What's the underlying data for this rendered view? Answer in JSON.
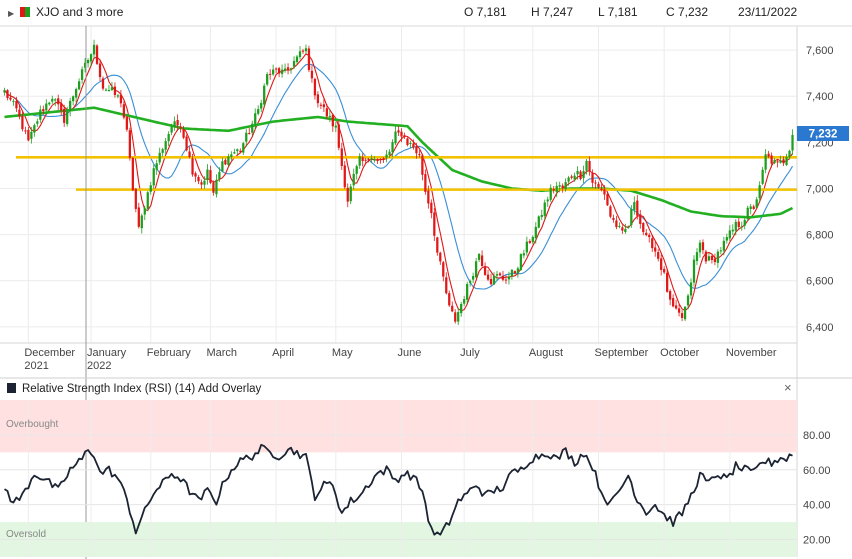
{
  "header": {
    "symbol_label": "XJO and 3 more",
    "open": "O 7,181",
    "high": "H 7,247",
    "low": "L 7,181",
    "close": "C 7,232",
    "date": "23/11/2022"
  },
  "price_panel": {
    "last_price_label": "7,232",
    "y_ticks": [
      "7,600",
      "7,400",
      "7,200",
      "7,000",
      "6,800",
      "6,600",
      "6,400"
    ],
    "x_ticks": [
      {
        "label": "December",
        "sub": "2021"
      },
      {
        "label": "January",
        "sub": "2022"
      },
      {
        "label": "February",
        "sub": ""
      },
      {
        "label": "March",
        "sub": ""
      },
      {
        "label": "April",
        "sub": ""
      },
      {
        "label": "May",
        "sub": ""
      },
      {
        "label": "June",
        "sub": ""
      },
      {
        "label": "July",
        "sub": ""
      },
      {
        "label": "August",
        "sub": ""
      },
      {
        "label": "September",
        "sub": ""
      },
      {
        "label": "October",
        "sub": ""
      },
      {
        "label": "November",
        "sub": ""
      }
    ]
  },
  "rsi_panel": {
    "title": "Relative Strength Index (RSI) (14)",
    "add_overlay": "Add Overlay",
    "close_symbol": "×",
    "overbought_label": "Overbought",
    "oversold_label": "Oversold",
    "y_ticks": [
      "80.00",
      "60.00",
      "40.00",
      "20.00"
    ]
  },
  "colors": {
    "up": "#1e9e1e",
    "down": "#e01818",
    "ma_fast": "#e01818",
    "ma_mid": "#3a8fd6",
    "ma_slow": "#22b022",
    "support_resistance": "#f2c200",
    "rsi_line": "#1c2433",
    "overbought_band": "#ffe1e1",
    "oversold_band": "#e2f6e2",
    "price_label_bg": "#2b78d0"
  },
  "chart_data": {
    "type": "candlestick",
    "y_range_price": [
      6330,
      7700
    ],
    "y_range_rsi": [
      10,
      100
    ],
    "horizontal_levels": [
      7135,
      6995
    ],
    "overbought_level": 70,
    "oversold_level": 30,
    "grid": true,
    "price_anchors": [
      [
        0,
        7420
      ],
      [
        4,
        7340
      ],
      [
        8,
        7200
      ],
      [
        12,
        7330
      ],
      [
        16,
        7400
      ],
      [
        20,
        7300
      ],
      [
        24,
        7440
      ],
      [
        28,
        7560
      ],
      [
        30,
        7610
      ],
      [
        33,
        7440
      ],
      [
        36,
        7420
      ],
      [
        39,
        7380
      ],
      [
        41,
        7240
      ],
      [
        43,
        7000
      ],
      [
        45,
        6820
      ],
      [
        47,
        6930
      ],
      [
        50,
        7080
      ],
      [
        53,
        7180
      ],
      [
        56,
        7270
      ],
      [
        59,
        7280
      ],
      [
        61,
        7180
      ],
      [
        63,
        7080
      ],
      [
        66,
        7020
      ],
      [
        68,
        7070
      ],
      [
        70,
        6980
      ],
      [
        73,
        7110
      ],
      [
        76,
        7150
      ],
      [
        79,
        7170
      ],
      [
        82,
        7250
      ],
      [
        85,
        7340
      ],
      [
        88,
        7490
      ],
      [
        91,
        7510
      ],
      [
        94,
        7500
      ],
      [
        97,
        7550
      ],
      [
        99,
        7580
      ],
      [
        101,
        7600
      ],
      [
        103,
        7460
      ],
      [
        105,
        7380
      ],
      [
        107,
        7340
      ],
      [
        109,
        7300
      ],
      [
        111,
        7260
      ],
      [
        113,
        7100
      ],
      [
        115,
        6950
      ],
      [
        117,
        7050
      ],
      [
        119,
        7120
      ],
      [
        121,
        7110
      ],
      [
        123,
        7150
      ],
      [
        125,
        7120
      ],
      [
        127,
        7120
      ],
      [
        129,
        7160
      ],
      [
        131,
        7230
      ],
      [
        133,
        7240
      ],
      [
        135,
        7200
      ],
      [
        137,
        7180
      ],
      [
        139,
        7140
      ],
      [
        141,
        6990
      ],
      [
        143,
        6900
      ],
      [
        145,
        6720
      ],
      [
        147,
        6610
      ],
      [
        149,
        6480
      ],
      [
        151,
        6430
      ],
      [
        153,
        6500
      ],
      [
        155,
        6570
      ],
      [
        157,
        6640
      ],
      [
        159,
        6720
      ],
      [
        161,
        6640
      ],
      [
        163,
        6600
      ],
      [
        165,
        6620
      ],
      [
        167,
        6610
      ],
      [
        169,
        6620
      ],
      [
        171,
        6640
      ],
      [
        173,
        6700
      ],
      [
        175,
        6750
      ],
      [
        177,
        6800
      ],
      [
        179,
        6860
      ],
      [
        181,
        6930
      ],
      [
        183,
        6990
      ],
      [
        185,
        7010
      ],
      [
        187,
        7000
      ],
      [
        189,
        7040
      ],
      [
        191,
        7070
      ],
      [
        193,
        7060
      ],
      [
        195,
        7120
      ],
      [
        197,
        7030
      ],
      [
        199,
        7000
      ],
      [
        201,
        6980
      ],
      [
        203,
        6880
      ],
      [
        205,
        6840
      ],
      [
        207,
        6800
      ],
      [
        209,
        6840
      ],
      [
        211,
        6950
      ],
      [
        213,
        6850
      ],
      [
        215,
        6780
      ],
      [
        217,
        6760
      ],
      [
        219,
        6700
      ],
      [
        221,
        6620
      ],
      [
        223,
        6500
      ],
      [
        225,
        6460
      ],
      [
        227,
        6440
      ],
      [
        229,
        6520
      ],
      [
        231,
        6680
      ],
      [
        233,
        6760
      ],
      [
        235,
        6700
      ],
      [
        237,
        6680
      ],
      [
        239,
        6720
      ],
      [
        241,
        6760
      ],
      [
        243,
        6800
      ],
      [
        245,
        6840
      ],
      [
        247,
        6850
      ],
      [
        249,
        6900
      ],
      [
        251,
        6920
      ],
      [
        253,
        7000
      ],
      [
        255,
        7140
      ],
      [
        257,
        7120
      ],
      [
        259,
        7100
      ],
      [
        261,
        7120
      ],
      [
        263,
        7180
      ],
      [
        264,
        7232
      ]
    ],
    "ma_slow_anchors": [
      [
        0,
        7310
      ],
      [
        30,
        7350
      ],
      [
        60,
        7260
      ],
      [
        75,
        7250
      ],
      [
        90,
        7290
      ],
      [
        105,
        7310
      ],
      [
        115,
        7290
      ],
      [
        125,
        7280
      ],
      [
        135,
        7270
      ],
      [
        140,
        7200
      ],
      [
        150,
        7080
      ],
      [
        160,
        7030
      ],
      [
        170,
        7000
      ],
      [
        180,
        6990
      ],
      [
        190,
        7000
      ],
      [
        200,
        7000
      ],
      [
        210,
        6990
      ],
      [
        220,
        6950
      ],
      [
        230,
        6900
      ],
      [
        240,
        6880
      ],
      [
        250,
        6875
      ],
      [
        260,
        6890
      ],
      [
        264,
        6915
      ]
    ],
    "rsi_anchors": [
      [
        0,
        50
      ],
      [
        3,
        41
      ],
      [
        6,
        45
      ],
      [
        10,
        58
      ],
      [
        14,
        54
      ],
      [
        18,
        48
      ],
      [
        22,
        60
      ],
      [
        26,
        66
      ],
      [
        28,
        72
      ],
      [
        30,
        69
      ],
      [
        32,
        58
      ],
      [
        35,
        60
      ],
      [
        38,
        55
      ],
      [
        41,
        43
      ],
      [
        44,
        25
      ],
      [
        47,
        36
      ],
      [
        50,
        47
      ],
      [
        53,
        52
      ],
      [
        56,
        58
      ],
      [
        59,
        55
      ],
      [
        62,
        48
      ],
      [
        65,
        42
      ],
      [
        68,
        48
      ],
      [
        71,
        42
      ],
      [
        74,
        55
      ],
      [
        77,
        62
      ],
      [
        80,
        66
      ],
      [
        83,
        68
      ],
      [
        86,
        72
      ],
      [
        89,
        70
      ],
      [
        92,
        68
      ],
      [
        95,
        72
      ],
      [
        98,
        70
      ],
      [
        101,
        67
      ],
      [
        104,
        45
      ],
      [
        107,
        51
      ],
      [
        110,
        52
      ],
      [
        113,
        35
      ],
      [
        116,
        42
      ],
      [
        119,
        45
      ],
      [
        122,
        52
      ],
      [
        125,
        58
      ],
      [
        128,
        60
      ],
      [
        131,
        54
      ],
      [
        134,
        58
      ],
      [
        137,
        56
      ],
      [
        140,
        48
      ],
      [
        143,
        25
      ],
      [
        146,
        22
      ],
      [
        149,
        30
      ],
      [
        152,
        42
      ],
      [
        155,
        46
      ],
      [
        158,
        52
      ],
      [
        161,
        45
      ],
      [
        164,
        48
      ],
      [
        167,
        50
      ],
      [
        170,
        58
      ],
      [
        173,
        60
      ],
      [
        176,
        66
      ],
      [
        179,
        68
      ],
      [
        182,
        70
      ],
      [
        185,
        66
      ],
      [
        188,
        71
      ],
      [
        191,
        64
      ],
      [
        194,
        70
      ],
      [
        197,
        62
      ],
      [
        200,
        47
      ],
      [
        203,
        40
      ],
      [
        206,
        48
      ],
      [
        209,
        57
      ],
      [
        212,
        43
      ],
      [
        215,
        36
      ],
      [
        218,
        40
      ],
      [
        221,
        34
      ],
      [
        224,
        30
      ],
      [
        227,
        35
      ],
      [
        230,
        45
      ],
      [
        233,
        57
      ],
      [
        236,
        52
      ],
      [
        239,
        58
      ],
      [
        242,
        54
      ],
      [
        245,
        62
      ],
      [
        248,
        60
      ],
      [
        251,
        58
      ],
      [
        254,
        65
      ],
      [
        257,
        64
      ],
      [
        260,
        67
      ],
      [
        262,
        66
      ],
      [
        264,
        70
      ]
    ]
  }
}
